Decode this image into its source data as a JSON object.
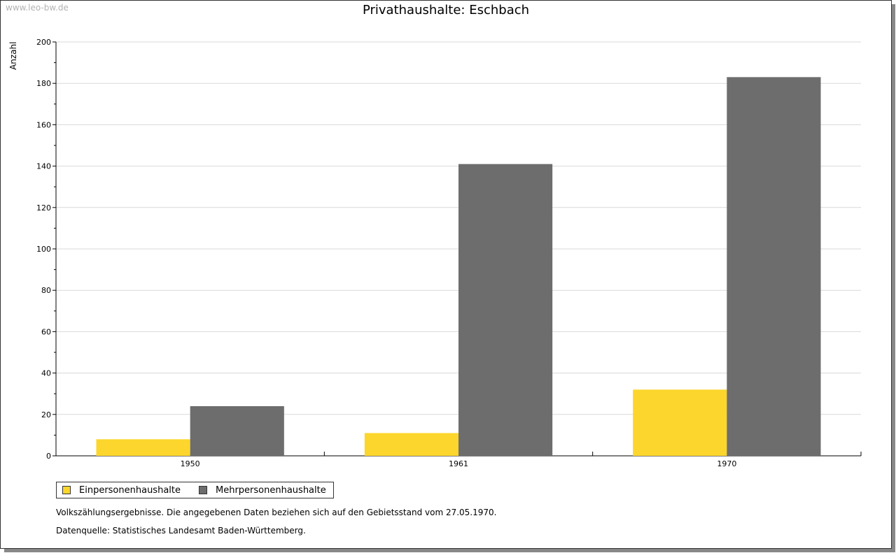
{
  "watermark": "www.leo-bw.de",
  "notes": {
    "census": "Volkszählungsergebnisse. Die angegebenen Daten beziehen sich auf den Gebietsstand vom 27.05.1970.",
    "source": "Datenquelle: Statistisches Landesamt Baden-Württemberg."
  },
  "colors": {
    "einpersonen": "#fcd62c",
    "mehrpersonen": "#6d6d6d",
    "grid": "#d9d9d9"
  },
  "chart_data": {
    "type": "bar",
    "title": "Privathaushalte: Eschbach",
    "xlabel": "",
    "ylabel": "Anzahl",
    "ylim": [
      0,
      200
    ],
    "yticks": [
      0,
      20,
      40,
      60,
      80,
      100,
      120,
      140,
      160,
      180,
      200
    ],
    "categories": [
      "1950",
      "1961",
      "1970"
    ],
    "series": [
      {
        "name": "Einpersonenhaushalte",
        "values": [
          8,
          11,
          32
        ]
      },
      {
        "name": "Mehrpersonenhaushalte",
        "values": [
          24,
          141,
          183
        ]
      }
    ],
    "grid": true,
    "legend": "bottom-left"
  }
}
